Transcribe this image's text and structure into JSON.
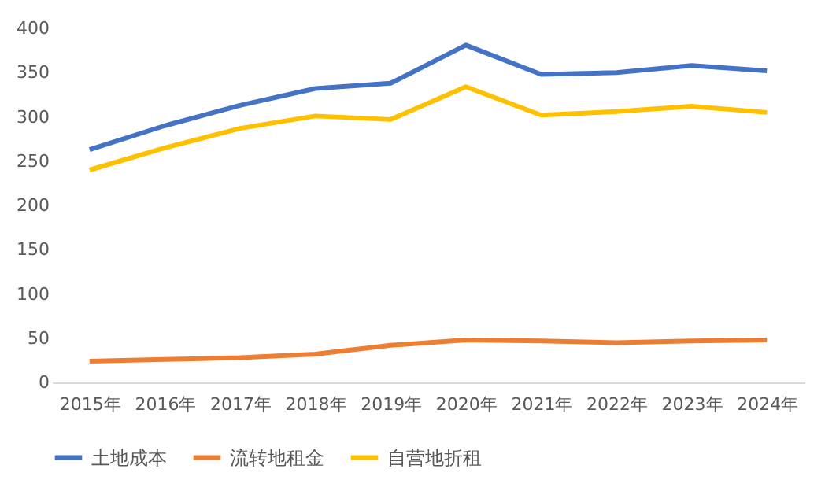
{
  "chart_data": {
    "type": "line",
    "categories": [
      "2015年",
      "2016年",
      "2017年",
      "2018年",
      "2019年",
      "2020年",
      "2021年",
      "2022年",
      "2023年",
      "2024年"
    ],
    "series": [
      {
        "name": "土地成本",
        "color": "#4472c4",
        "values": [
          263,
          290,
          313,
          332,
          338,
          381,
          348,
          350,
          358,
          352
        ]
      },
      {
        "name": "流转地租金",
        "color": "#ed7d31",
        "values": [
          24,
          26,
          28,
          32,
          42,
          48,
          47,
          45,
          47,
          48
        ]
      },
      {
        "name": "自营地折租",
        "color": "#ffc000",
        "values": [
          240,
          265,
          287,
          301,
          297,
          334,
          302,
          306,
          312,
          305
        ]
      }
    ],
    "ylim": [
      0,
      400
    ],
    "yticks": [
      0,
      50,
      100,
      150,
      200,
      250,
      300,
      350,
      400
    ],
    "grid": false,
    "legend": "bottom",
    "marker": "none",
    "line_style": "solid"
  }
}
